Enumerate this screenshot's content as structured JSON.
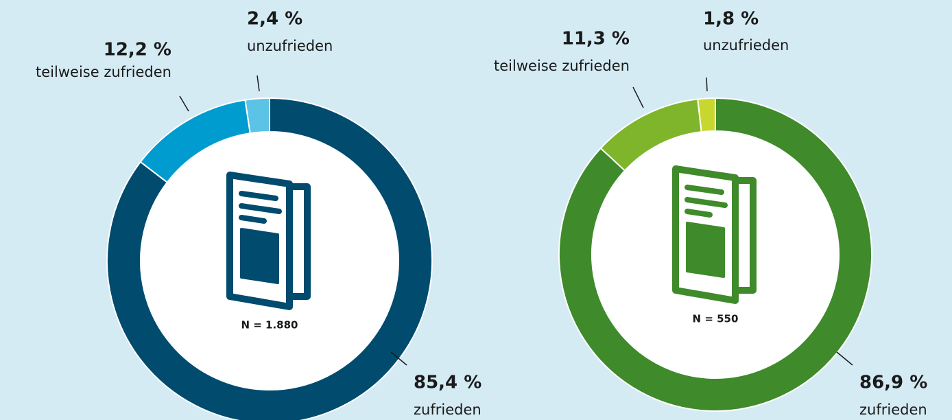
{
  "chart_data": [
    {
      "type": "pie",
      "categories": [
        "zufrieden",
        "teilweise zufrieden",
        "unzufrieden"
      ],
      "values": [
        85.4,
        12.2,
        2.4
      ],
      "value_labels": [
        "85,4 %",
        "12,2 %",
        "2,4 %"
      ],
      "colors": [
        "#004b6e",
        "#009ccf",
        "#5bc3e5"
      ],
      "annotation": "N = 1.880"
    },
    {
      "type": "pie",
      "categories": [
        "zufrieden",
        "teilweise zufrieden",
        "unzufrieden"
      ],
      "values": [
        86.9,
        11.3,
        1.8
      ],
      "value_labels": [
        "86,9 %",
        "11,3 %",
        "1,8 %"
      ],
      "colors": [
        "#3f8a2a",
        "#7fb52a",
        "#c8d72e"
      ],
      "annotation": "N = 550"
    }
  ]
}
